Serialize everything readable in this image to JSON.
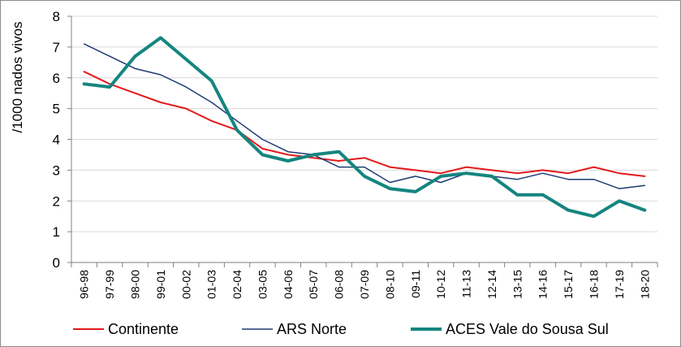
{
  "chart_data": {
    "type": "line",
    "title": "",
    "xlabel": "",
    "ylabel": "/1000 nados vivos",
    "ylim": [
      0,
      8
    ],
    "yticks": [
      0,
      1,
      2,
      3,
      4,
      5,
      6,
      7,
      8
    ],
    "grid": true,
    "legend_position": "bottom",
    "categories": [
      "96-98",
      "97-99",
      "98-00",
      "99-01",
      "00-02",
      "01-03",
      "02-04",
      "03-05",
      "04-06",
      "05-07",
      "06-08",
      "07-09",
      "08-10",
      "09-11",
      "10-12",
      "11-13",
      "12-14",
      "13-15",
      "14-16",
      "15-17",
      "16-18",
      "17-19",
      "18-20"
    ],
    "series": [
      {
        "name": "Continente",
        "color": "#e31a1c",
        "values": [
          6.2,
          5.8,
          5.5,
          5.2,
          5.0,
          4.6,
          4.3,
          3.7,
          3.5,
          3.4,
          3.3,
          3.4,
          3.1,
          3.0,
          2.9,
          3.1,
          3.0,
          2.9,
          3.0,
          2.9,
          3.1,
          2.9,
          2.8
        ]
      },
      {
        "name": "ARS Norte",
        "color": "#1f3b73",
        "values": [
          7.1,
          6.7,
          6.3,
          6.1,
          5.7,
          5.2,
          4.6,
          4.0,
          3.6,
          3.5,
          3.1,
          3.1,
          2.6,
          2.8,
          2.6,
          2.9,
          2.8,
          2.7,
          2.9,
          2.7,
          2.7,
          2.4,
          2.5
        ]
      },
      {
        "name": "ACES Vale do Sousa Sul",
        "color": "#14857f",
        "values": [
          5.8,
          5.7,
          6.7,
          7.3,
          6.6,
          5.9,
          4.3,
          3.5,
          3.3,
          3.5,
          3.6,
          2.8,
          2.4,
          2.3,
          2.8,
          2.9,
          2.8,
          2.2,
          2.2,
          1.7,
          1.5,
          2.0,
          1.7
        ]
      }
    ]
  }
}
